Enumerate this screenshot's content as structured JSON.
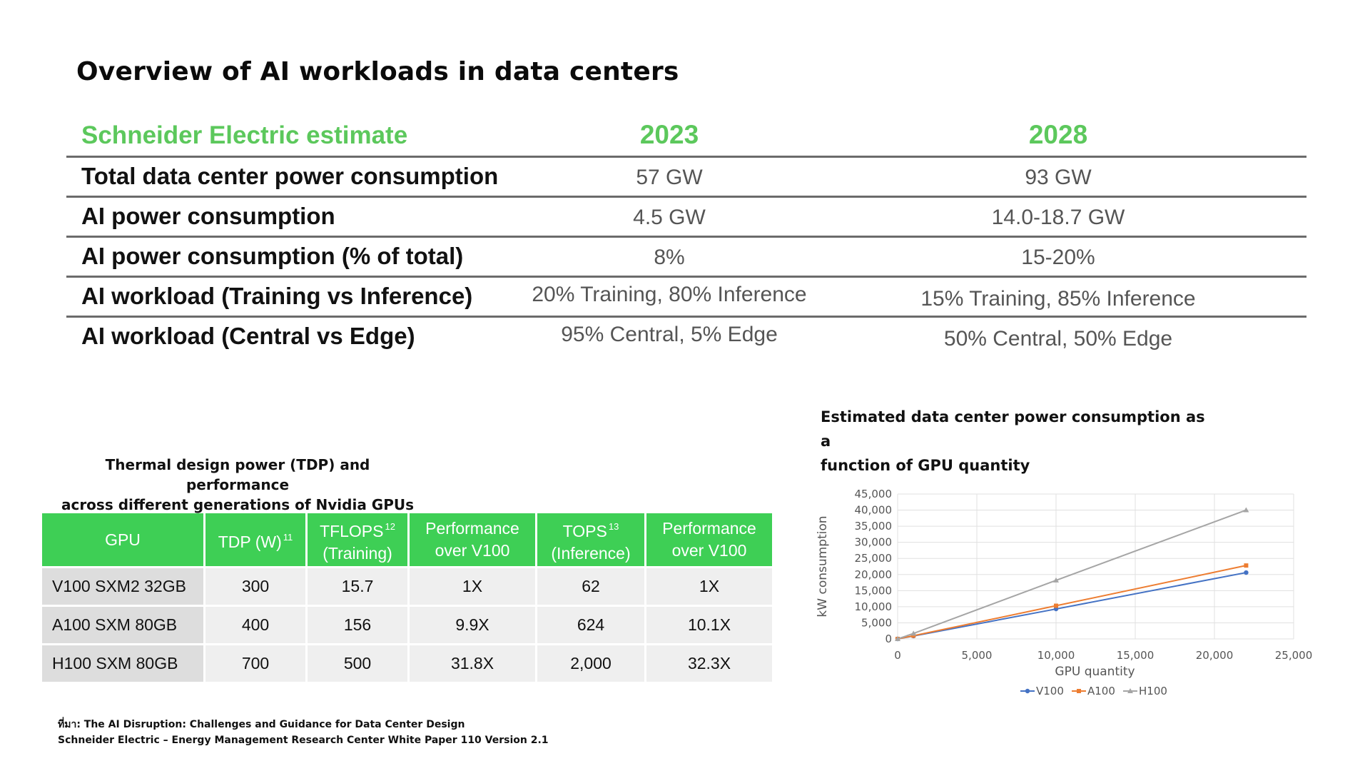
{
  "title": "Overview of AI workloads in data centers",
  "estimate": {
    "header": [
      "Schneider Electric estimate",
      "2023",
      "2028"
    ],
    "rows": [
      [
        "Total data center power consumption",
        "57 GW",
        "93 GW"
      ],
      [
        "AI power consumption",
        "4.5 GW",
        "14.0-18.7 GW"
      ],
      [
        "AI power consumption (% of total)",
        "8%",
        "15-20%"
      ],
      [
        "AI workload (Training vs Inference)",
        "20% Training, 80% Inference",
        "15% Training, 85% Inference"
      ],
      [
        "AI workload (Central vs Edge)",
        "95% Central, 5% Edge",
        "50% Central, 50% Edge"
      ]
    ]
  },
  "gpu": {
    "caption_line1": "Thermal design power (TDP) and performance",
    "caption_line2": "across different generations of Nvidia GPUs",
    "headers": {
      "gpu": "GPU",
      "tdp": "TDP (W)",
      "tdp_sup": "11",
      "tflops": "TFLOPS",
      "tflops_sup": "12",
      "tflops_sub": "(Training)",
      "perf1_l1": "Performance",
      "perf1_l2": "over V100",
      "tops": "TOPS",
      "tops_sup": "13",
      "tops_sub": "(Inference)",
      "perf2_l1": "Performance",
      "perf2_l2": "over V100"
    },
    "rows": [
      [
        "V100 SXM2 32GB",
        "300",
        "15.7",
        "1X",
        "62",
        "1X"
      ],
      [
        "A100 SXM 80GB",
        "400",
        "156",
        "9.9X",
        "624",
        "10.1X"
      ],
      [
        "H100 SXM 80GB",
        "700",
        "500",
        "31.8X",
        "2,000",
        "32.3X"
      ]
    ]
  },
  "source": {
    "line1": "ที่มา: The AI Disruption: Challenges and Guidance for Data Center Design",
    "line2": "Schneider Electric – Energy Management Research Center White Paper 110 Version 2.1"
  },
  "chart_title_line1": "Estimated data center power consumption as a",
  "chart_title_line2": "function of GPU quantity",
  "chart_data": {
    "type": "line",
    "title": "Estimated data center power consumption as a function of GPU quantity",
    "xlabel": "GPU quantity",
    "ylabel": "kW consumption",
    "xlim": [
      0,
      25000
    ],
    "ylim": [
      0,
      45000
    ],
    "xticks": [
      "0",
      "5,000",
      "10,000",
      "15,000",
      "20,000",
      "25,000"
    ],
    "yticks": [
      "0",
      "5,000",
      "10,000",
      "15,000",
      "20,000",
      "25,000",
      "30,000",
      "35,000",
      "40,000",
      "45,000"
    ],
    "grid": true,
    "legend": "bottom",
    "series": [
      {
        "name": "V100",
        "color": "#4472c4",
        "marker": "circle",
        "x": [
          0,
          1000,
          10000,
          22000
        ],
        "y": [
          0,
          900,
          9300,
          20600
        ]
      },
      {
        "name": "A100",
        "color": "#ed7d31",
        "marker": "square",
        "x": [
          0,
          1000,
          10000,
          22000
        ],
        "y": [
          0,
          1000,
          10300,
          22800
        ]
      },
      {
        "name": "H100",
        "color": "#a5a5a5",
        "marker": "triangle",
        "x": [
          0,
          1000,
          10000,
          22000
        ],
        "y": [
          0,
          1700,
          18200,
          40000
        ]
      }
    ]
  }
}
